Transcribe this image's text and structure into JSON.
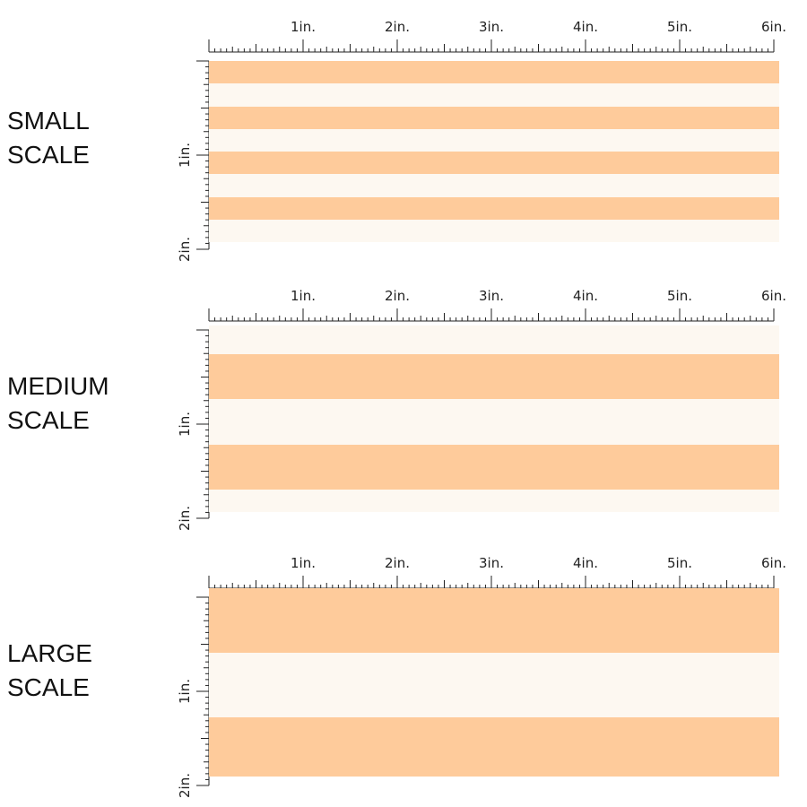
{
  "colors": {
    "stripe_a": "#fecb9b",
    "stripe_b": "#fdf8f1",
    "ruler": "#222222"
  },
  "ruler_labels": {
    "horizontal": [
      "1in.",
      "2in.",
      "3in.",
      "4in.",
      "5in.",
      "6in."
    ],
    "vertical": [
      "1in.",
      "2in."
    ]
  },
  "panels": [
    {
      "id": "small",
      "label": "SMALL\nSCALE",
      "stripes": [
        "stripe_a",
        "stripe_b",
        "stripe_a",
        "stripe_b",
        "stripe_a",
        "stripe_b",
        "stripe_a",
        "stripe_b"
      ]
    },
    {
      "id": "medium",
      "label": "MEDIUM\nSCALE",
      "stripes": [
        "stripe_b",
        "stripe_a",
        "stripe_b",
        "stripe_a",
        "stripe_b"
      ]
    },
    {
      "id": "large",
      "label": "LARGE\nSCALE",
      "stripes": [
        "stripe_a",
        "stripe_b",
        "stripe_a"
      ]
    }
  ]
}
